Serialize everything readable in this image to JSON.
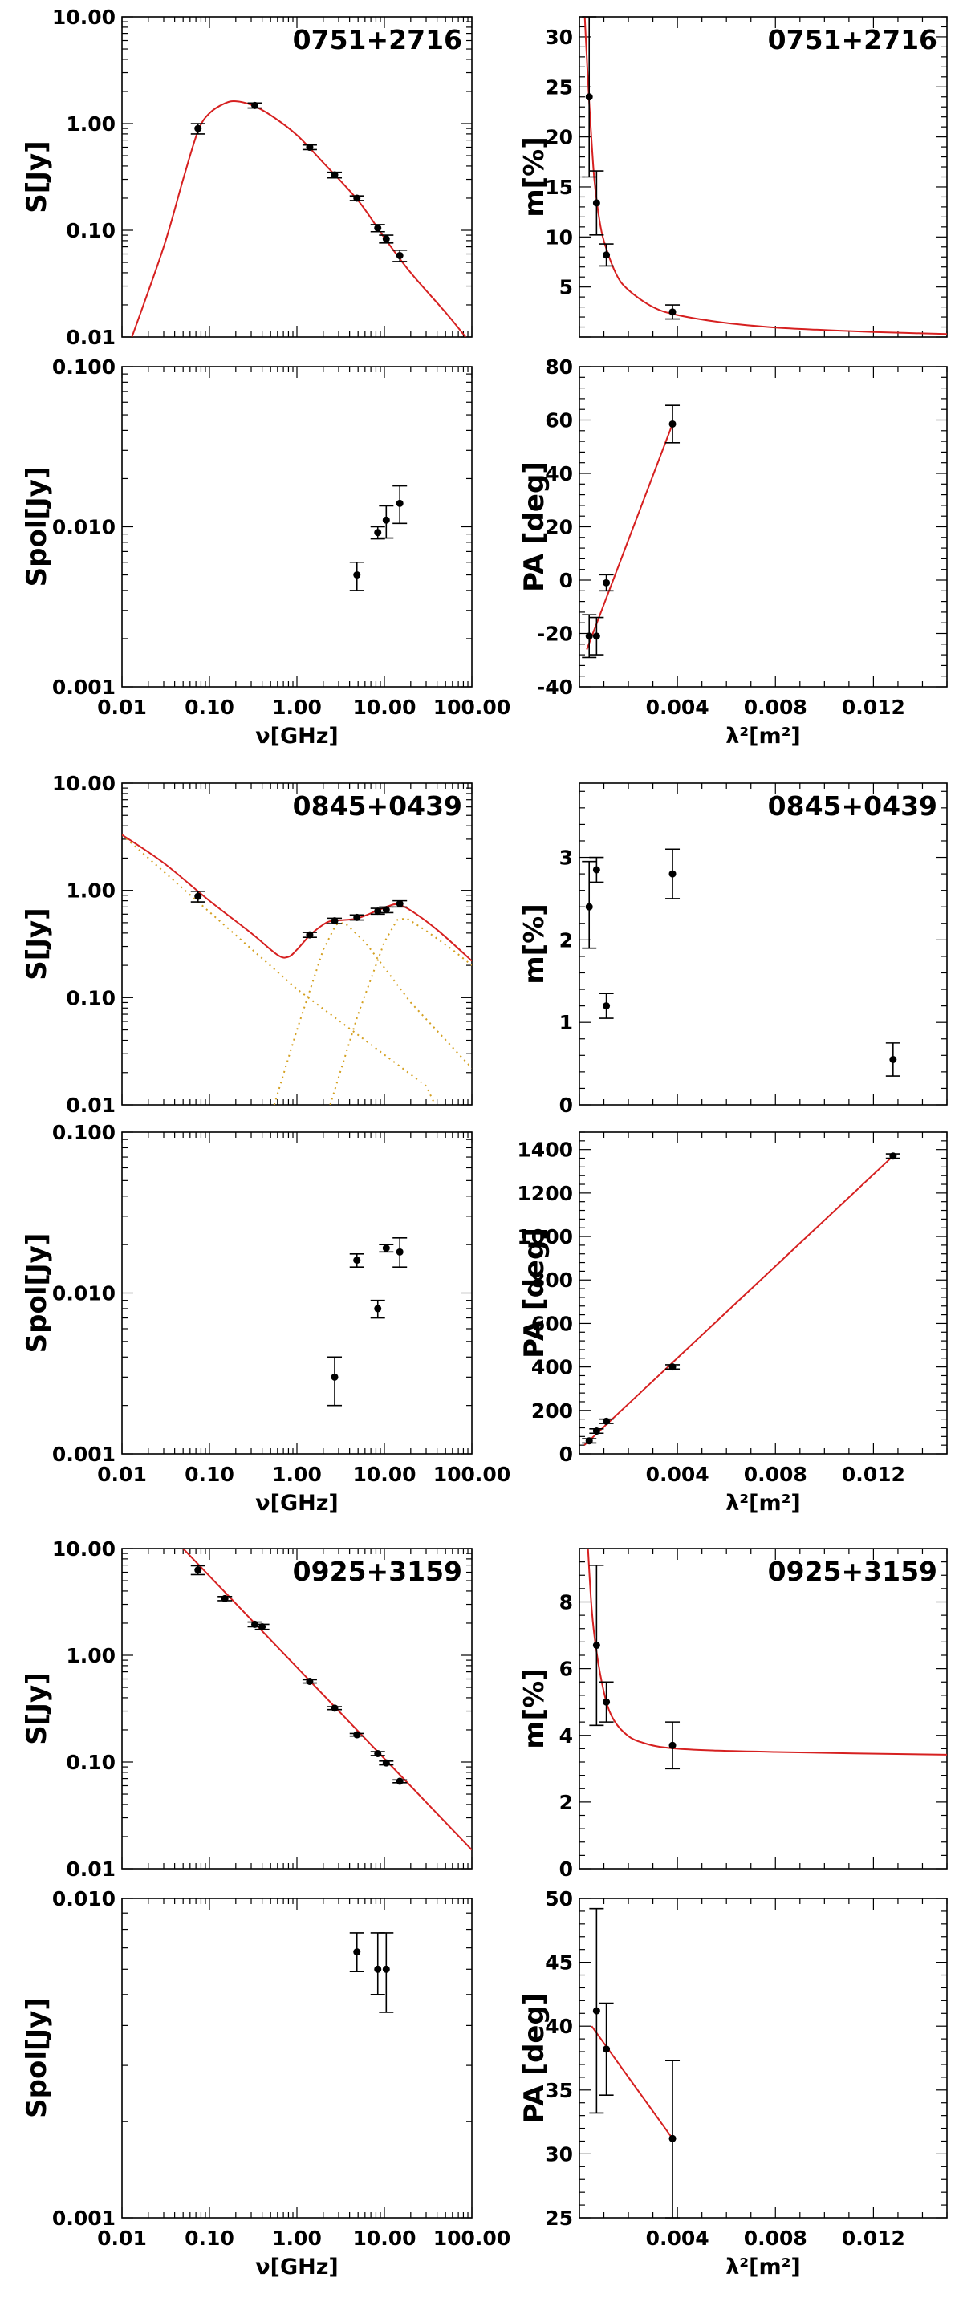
{
  "colors": {
    "fit": "#d62020",
    "component": "#d4a020",
    "point": "#000000",
    "background": "#ffffff"
  },
  "chart_data": [
    {
      "id": "p1",
      "type": "scatter",
      "source": "0751+2716",
      "xlabel": "",
      "ylabel": "S[Jy]",
      "xscale": "log",
      "yscale": "log",
      "xlim": [
        0.01,
        100
      ],
      "ylim": [
        0.01,
        10
      ],
      "xticklabels": [],
      "yticklabels": [
        "0.01",
        "0.10",
        "1.00",
        "10.00"
      ],
      "points": [
        {
          "x": 0.074,
          "y": 0.9,
          "ylo": 0.8,
          "yhi": 1.0
        },
        {
          "x": 0.33,
          "y": 1.48,
          "ylo": 1.4,
          "yhi": 1.56
        },
        {
          "x": 1.4,
          "y": 0.6,
          "ylo": 0.57,
          "yhi": 0.63
        },
        {
          "x": 2.7,
          "y": 0.33,
          "ylo": 0.31,
          "yhi": 0.35
        },
        {
          "x": 4.85,
          "y": 0.2,
          "ylo": 0.19,
          "yhi": 0.21
        },
        {
          "x": 8.4,
          "y": 0.105,
          "ylo": 0.097,
          "yhi": 0.113
        },
        {
          "x": 10.5,
          "y": 0.083,
          "ylo": 0.076,
          "yhi": 0.09
        },
        {
          "x": 15,
          "y": 0.058,
          "ylo": 0.051,
          "yhi": 0.065
        }
      ],
      "fit": [
        {
          "x": 0.013,
          "y": 0.01
        },
        {
          "x": 0.03,
          "y": 0.07
        },
        {
          "x": 0.05,
          "y": 0.3
        },
        {
          "x": 0.074,
          "y": 0.85
        },
        {
          "x": 0.1,
          "y": 1.25
        },
        {
          "x": 0.15,
          "y": 1.55
        },
        {
          "x": 0.2,
          "y": 1.62
        },
        {
          "x": 0.3,
          "y": 1.5
        },
        {
          "x": 0.5,
          "y": 1.2
        },
        {
          "x": 1,
          "y": 0.78
        },
        {
          "x": 2,
          "y": 0.43
        },
        {
          "x": 5,
          "y": 0.19
        },
        {
          "x": 10,
          "y": 0.085
        },
        {
          "x": 20,
          "y": 0.04
        },
        {
          "x": 50,
          "y": 0.017
        },
        {
          "x": 85,
          "y": 0.01
        }
      ]
    },
    {
      "id": "p2",
      "type": "scatter",
      "source": "0751+2716",
      "xlabel": "",
      "ylabel": "m[%]",
      "xscale": "linear",
      "yscale": "linear",
      "xlim": [
        0,
        0.015
      ],
      "ylim": [
        0,
        32
      ],
      "xticklabels": [],
      "yticklabels": [
        "5",
        "10",
        "15",
        "20",
        "25",
        "30"
      ],
      "points": [
        {
          "x": 0.0004,
          "y": 24,
          "ylo": 16,
          "yhi": 32
        },
        {
          "x": 0.0007,
          "y": 13.4,
          "ylo": 10.2,
          "yhi": 16.6
        },
        {
          "x": 0.0011,
          "y": 8.2,
          "ylo": 7.1,
          "yhi": 9.3
        },
        {
          "x": 0.0038,
          "y": 2.5,
          "ylo": 1.8,
          "yhi": 3.2
        }
      ],
      "fit": [
        {
          "x": 0.00022,
          "y": 32
        },
        {
          "x": 0.0003,
          "y": 28
        },
        {
          "x": 0.0004,
          "y": 23.5
        },
        {
          "x": 0.0006,
          "y": 16
        },
        {
          "x": 0.0008,
          "y": 12
        },
        {
          "x": 0.001,
          "y": 9.6
        },
        {
          "x": 0.0015,
          "y": 6.3
        },
        {
          "x": 0.002,
          "y": 4.7
        },
        {
          "x": 0.003,
          "y": 3.0
        },
        {
          "x": 0.004,
          "y": 2.2
        },
        {
          "x": 0.006,
          "y": 1.4
        },
        {
          "x": 0.008,
          "y": 0.95
        },
        {
          "x": 0.01,
          "y": 0.7
        },
        {
          "x": 0.012,
          "y": 0.5
        },
        {
          "x": 0.015,
          "y": 0.3
        }
      ]
    },
    {
      "id": "p3",
      "type": "scatter",
      "source": "",
      "xlabel": "ν[GHz]",
      "ylabel": "Spol[Jy]",
      "xscale": "log",
      "yscale": "log",
      "xlim": [
        0.01,
        100
      ],
      "ylim": [
        0.001,
        0.1
      ],
      "xticklabels": [
        "0.01",
        "0.10",
        "1.00",
        "10.00",
        "100.00"
      ],
      "yticklabels": [
        "0.001",
        "0.010",
        "0.100"
      ],
      "points": [
        {
          "x": 4.85,
          "y": 0.005,
          "ylo": 0.004,
          "yhi": 0.006
        },
        {
          "x": 8.4,
          "y": 0.0092,
          "ylo": 0.0084,
          "yhi": 0.01
        },
        {
          "x": 10.5,
          "y": 0.011,
          "ylo": 0.0085,
          "yhi": 0.0135
        },
        {
          "x": 15,
          "y": 0.014,
          "ylo": 0.0105,
          "yhi": 0.018
        }
      ],
      "fit": []
    },
    {
      "id": "p4",
      "type": "scatter",
      "source": "",
      "xlabel": "λ²[m²]",
      "ylabel": "PA [deg]",
      "xscale": "linear",
      "yscale": "linear",
      "xlim": [
        0,
        0.015
      ],
      "ylim": [
        -40,
        80
      ],
      "xticklabels": [
        "0.004",
        "0.008",
        "0.012"
      ],
      "yticklabels": [
        "-40",
        "-20",
        "0",
        "20",
        "40",
        "60",
        "80"
      ],
      "points": [
        {
          "x": 0.0004,
          "y": -21,
          "ylo": -29,
          "yhi": -13
        },
        {
          "x": 0.0007,
          "y": -21,
          "ylo": -28,
          "yhi": -14
        },
        {
          "x": 0.0011,
          "y": -1,
          "ylo": -4,
          "yhi": 2
        },
        {
          "x": 0.0038,
          "y": 58.5,
          "ylo": 51.5,
          "yhi": 65.5
        }
      ],
      "fit": [
        {
          "x": 0.0003,
          "y": -26
        },
        {
          "x": 0.0038,
          "y": 58.5
        }
      ]
    },
    {
      "id": "p5",
      "type": "scatter",
      "source": "0845+0439",
      "xlabel": "",
      "ylabel": "S[Jy]",
      "xscale": "log",
      "yscale": "log",
      "xlim": [
        0.01,
        100
      ],
      "ylim": [
        0.01,
        10
      ],
      "xticklabels": [],
      "yticklabels": [
        "0.01",
        "0.10",
        "1.00",
        "10.00"
      ],
      "points": [
        {
          "x": 0.074,
          "y": 0.88,
          "ylo": 0.78,
          "yhi": 0.98
        },
        {
          "x": 1.4,
          "y": 0.385,
          "ylo": 0.365,
          "yhi": 0.405
        },
        {
          "x": 2.7,
          "y": 0.52,
          "ylo": 0.49,
          "yhi": 0.55
        },
        {
          "x": 4.85,
          "y": 0.56,
          "ylo": 0.53,
          "yhi": 0.59
        },
        {
          "x": 8.4,
          "y": 0.64,
          "ylo": 0.6,
          "yhi": 0.68
        },
        {
          "x": 10.5,
          "y": 0.66,
          "ylo": 0.62,
          "yhi": 0.7
        },
        {
          "x": 15,
          "y": 0.75,
          "ylo": 0.7,
          "yhi": 0.8
        }
      ],
      "fit": [
        {
          "x": 0.01,
          "y": 3.3
        },
        {
          "x": 0.03,
          "y": 1.8
        },
        {
          "x": 0.1,
          "y": 0.8
        },
        {
          "x": 0.3,
          "y": 0.4
        },
        {
          "x": 0.6,
          "y": 0.25
        },
        {
          "x": 0.8,
          "y": 0.24
        },
        {
          "x": 1.0,
          "y": 0.28
        },
        {
          "x": 1.4,
          "y": 0.38
        },
        {
          "x": 2,
          "y": 0.48
        },
        {
          "x": 2.5,
          "y": 0.52
        },
        {
          "x": 3.5,
          "y": 0.53
        },
        {
          "x": 5,
          "y": 0.55
        },
        {
          "x": 8,
          "y": 0.64
        },
        {
          "x": 11,
          "y": 0.71
        },
        {
          "x": 14,
          "y": 0.74
        },
        {
          "x": 20,
          "y": 0.65
        },
        {
          "x": 40,
          "y": 0.43
        },
        {
          "x": 100,
          "y": 0.22
        }
      ],
      "components": [
        [
          {
            "x": 0.01,
            "y": 3.3
          },
          {
            "x": 1,
            "y": 0.12
          },
          {
            "x": 30,
            "y": 0.015
          },
          {
            "x": 38,
            "y": 0.01
          }
        ],
        [
          {
            "x": 0.55,
            "y": 0.01
          },
          {
            "x": 1,
            "y": 0.05
          },
          {
            "x": 2,
            "y": 0.28
          },
          {
            "x": 2.8,
            "y": 0.48
          },
          {
            "x": 3.5,
            "y": 0.5
          },
          {
            "x": 6,
            "y": 0.33
          },
          {
            "x": 20,
            "y": 0.09
          },
          {
            "x": 100,
            "y": 0.022
          }
        ],
        [
          {
            "x": 2.4,
            "y": 0.01
          },
          {
            "x": 5,
            "y": 0.07
          },
          {
            "x": 10,
            "y": 0.33
          },
          {
            "x": 14,
            "y": 0.53
          },
          {
            "x": 18,
            "y": 0.55
          },
          {
            "x": 30,
            "y": 0.42
          },
          {
            "x": 60,
            "y": 0.28
          },
          {
            "x": 100,
            "y": 0.2
          }
        ]
      ]
    },
    {
      "id": "p6",
      "type": "scatter",
      "source": "0845+0439",
      "xlabel": "",
      "ylabel": "m[%]",
      "xscale": "linear",
      "yscale": "linear",
      "xlim": [
        0,
        0.015
      ],
      "ylim": [
        0,
        3.9
      ],
      "xticklabels": [],
      "yticklabels": [
        "0",
        "1",
        "2",
        "3"
      ],
      "points": [
        {
          "x": 0.0004,
          "y": 2.4,
          "ylo": 1.9,
          "yhi": 2.95
        },
        {
          "x": 0.0007,
          "y": 2.85,
          "ylo": 2.7,
          "yhi": 3.0
        },
        {
          "x": 0.0011,
          "y": 1.2,
          "ylo": 1.05,
          "yhi": 1.35
        },
        {
          "x": 0.0038,
          "y": 2.8,
          "ylo": 2.5,
          "yhi": 3.1
        },
        {
          "x": 0.0128,
          "y": 0.55,
          "ylo": 0.35,
          "yhi": 0.75
        }
      ],
      "fit": []
    },
    {
      "id": "p7",
      "type": "scatter",
      "source": "",
      "xlabel": "ν[GHz]",
      "ylabel": "Spol[Jy]",
      "xscale": "log",
      "yscale": "log",
      "xlim": [
        0.01,
        100
      ],
      "ylim": [
        0.001,
        0.1
      ],
      "xticklabels": [
        "0.01",
        "0.10",
        "1.00",
        "10.00",
        "100.00"
      ],
      "yticklabels": [
        "0.001",
        "0.010",
        "0.100"
      ],
      "points": [
        {
          "x": 2.7,
          "y": 0.003,
          "ylo": 0.002,
          "yhi": 0.004
        },
        {
          "x": 4.85,
          "y": 0.016,
          "ylo": 0.0145,
          "yhi": 0.0175
        },
        {
          "x": 8.4,
          "y": 0.008,
          "ylo": 0.007,
          "yhi": 0.009
        },
        {
          "x": 10.5,
          "y": 0.019,
          "ylo": 0.018,
          "yhi": 0.02
        },
        {
          "x": 15,
          "y": 0.018,
          "ylo": 0.0145,
          "yhi": 0.022
        }
      ],
      "fit": []
    },
    {
      "id": "p8",
      "type": "scatter",
      "source": "",
      "xlabel": "λ²[m²]",
      "ylabel": "PA [deg]",
      "xscale": "linear",
      "yscale": "linear",
      "xlim": [
        0,
        0.015
      ],
      "ylim": [
        0,
        1480
      ],
      "xticklabels": [
        "0.004",
        "0.008",
        "0.012"
      ],
      "yticklabels": [
        "0",
        "200",
        "400",
        "600",
        "800",
        "1000",
        "1200",
        "1400"
      ],
      "points": [
        {
          "x": 0.0004,
          "y": 60,
          "ylo": 50,
          "yhi": 70
        },
        {
          "x": 0.0007,
          "y": 105,
          "ylo": 95,
          "yhi": 115
        },
        {
          "x": 0.0011,
          "y": 150,
          "ylo": 140,
          "yhi": 160
        },
        {
          "x": 0.0038,
          "y": 400,
          "ylo": 390,
          "yhi": 410
        },
        {
          "x": 0.0128,
          "y": 1370,
          "ylo": 1360,
          "yhi": 1380
        }
      ],
      "fit": [
        {
          "x": 0.0002,
          "y": 40
        },
        {
          "x": 0.0128,
          "y": 1370
        }
      ]
    },
    {
      "id": "p9",
      "type": "scatter",
      "source": "0925+3159",
      "xlabel": "",
      "ylabel": "S[Jy]",
      "xscale": "log",
      "yscale": "log",
      "xlim": [
        0.01,
        100
      ],
      "ylim": [
        0.01,
        10
      ],
      "xticklabels": [],
      "yticklabels": [
        "0.01",
        "0.10",
        "1.00",
        "10.00"
      ],
      "points": [
        {
          "x": 0.074,
          "y": 6.3,
          "ylo": 5.7,
          "yhi": 6.9
        },
        {
          "x": 0.15,
          "y": 3.4,
          "ylo": 3.25,
          "yhi": 3.55
        },
        {
          "x": 0.33,
          "y": 1.95,
          "ylo": 1.85,
          "yhi": 2.05
        },
        {
          "x": 0.4,
          "y": 1.85,
          "ylo": 1.75,
          "yhi": 1.95
        },
        {
          "x": 1.4,
          "y": 0.57,
          "ylo": 0.55,
          "yhi": 0.59
        },
        {
          "x": 2.7,
          "y": 0.32,
          "ylo": 0.31,
          "yhi": 0.33
        },
        {
          "x": 4.85,
          "y": 0.18,
          "ylo": 0.175,
          "yhi": 0.185
        },
        {
          "x": 8.4,
          "y": 0.12,
          "ylo": 0.115,
          "yhi": 0.125
        },
        {
          "x": 10.5,
          "y": 0.098,
          "ylo": 0.094,
          "yhi": 0.102
        },
        {
          "x": 15,
          "y": 0.066,
          "ylo": 0.064,
          "yhi": 0.068
        }
      ],
      "fit": [
        {
          "x": 0.05,
          "y": 10
        },
        {
          "x": 100,
          "y": 0.015
        }
      ]
    },
    {
      "id": "p10",
      "type": "scatter",
      "source": "0925+3159",
      "xlabel": "",
      "ylabel": "m[%]",
      "xscale": "linear",
      "yscale": "linear",
      "xlim": [
        0,
        0.015
      ],
      "ylim": [
        0,
        9.6
      ],
      "xticklabels": [],
      "yticklabels": [
        "0",
        "2",
        "4",
        "6",
        "8"
      ],
      "points": [
        {
          "x": 0.0007,
          "y": 6.7,
          "ylo": 4.3,
          "yhi": 9.1
        },
        {
          "x": 0.0011,
          "y": 5.0,
          "ylo": 4.4,
          "yhi": 5.6
        },
        {
          "x": 0.0038,
          "y": 3.7,
          "ylo": 3.0,
          "yhi": 4.4
        }
      ],
      "fit": [
        {
          "x": 0.00035,
          "y": 9.6
        },
        {
          "x": 0.0005,
          "y": 7.8
        },
        {
          "x": 0.0007,
          "y": 6.5
        },
        {
          "x": 0.001,
          "y": 5.3
        },
        {
          "x": 0.0013,
          "y": 4.6
        },
        {
          "x": 0.0018,
          "y": 4.1
        },
        {
          "x": 0.0025,
          "y": 3.8
        },
        {
          "x": 0.004,
          "y": 3.6
        },
        {
          "x": 0.008,
          "y": 3.5
        },
        {
          "x": 0.015,
          "y": 3.42
        }
      ]
    },
    {
      "id": "p11",
      "type": "scatter",
      "source": "",
      "xlabel": "ν[GHz]",
      "ylabel": "Spol[Jy]",
      "xscale": "log",
      "yscale": "log",
      "xlim": [
        0.01,
        100
      ],
      "ylim": [
        0.001,
        0.01
      ],
      "xticklabels": [
        "0.01",
        "0.10",
        "1.00",
        "10.00",
        "100.00"
      ],
      "yticklabels": [
        "0.001",
        "0.010"
      ],
      "points": [
        {
          "x": 4.85,
          "y": 0.0068,
          "ylo": 0.0059,
          "yhi": 0.0078
        },
        {
          "x": 8.4,
          "y": 0.006,
          "ylo": 0.005,
          "yhi": 0.0078
        },
        {
          "x": 10.5,
          "y": 0.006,
          "ylo": 0.0044,
          "yhi": 0.0078
        }
      ],
      "fit": []
    },
    {
      "id": "p12",
      "type": "scatter",
      "source": "",
      "xlabel": "λ²[m²]",
      "ylabel": "PA [deg]",
      "xscale": "linear",
      "yscale": "linear",
      "xlim": [
        0,
        0.015
      ],
      "ylim": [
        25,
        50
      ],
      "xticklabels": [
        "0.004",
        "0.008",
        "0.012"
      ],
      "yticklabels": [
        "25",
        "30",
        "35",
        "40",
        "45",
        "50"
      ],
      "points": [
        {
          "x": 0.0007,
          "y": 41.2,
          "ylo": 33.2,
          "yhi": 49.2
        },
        {
          "x": 0.0011,
          "y": 38.2,
          "ylo": 34.6,
          "yhi": 41.8
        },
        {
          "x": 0.0038,
          "y": 31.2,
          "ylo": 25,
          "yhi": 37.3
        }
      ],
      "fit": [
        {
          "x": 0.0005,
          "y": 40
        },
        {
          "x": 0.0038,
          "y": 31.2
        }
      ]
    }
  ]
}
